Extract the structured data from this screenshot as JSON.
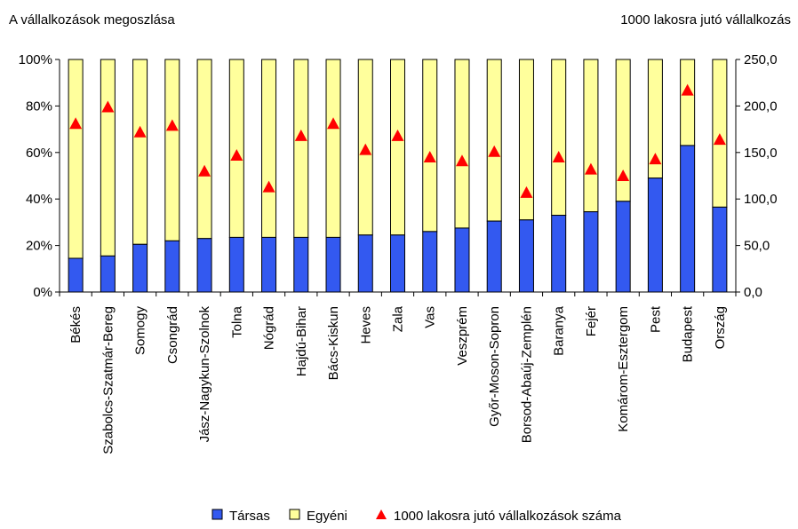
{
  "header": {
    "left_title": "A vállalkozások megoszlása",
    "right_title": "1000 lakosra jutó vállalkozás"
  },
  "chart_data": {
    "type": "bar",
    "stacked": true,
    "categories": [
      "Békés",
      "Szabolcs-Szatmár-Bereg",
      "Somogy",
      "Csongrád",
      "Jász-Nagykun-Szolnok",
      "Tolna",
      "Nógrád",
      "Hajdú-Bihar",
      "Bács-Kiskun",
      "Heves",
      "Zala",
      "Vas",
      "Veszprém",
      "Győr-Moson-Sopron",
      "Borsod-Abaúj-Zemplén",
      "Baranya",
      "Fejér",
      "Komárom-Esztergom",
      "Pest",
      "Budapest",
      "Ország"
    ],
    "series": [
      {
        "name": "Társas",
        "axis": "left",
        "color": "#3359F0",
        "values": [
          14.5,
          15.5,
          20.5,
          22,
          23,
          23.5,
          23.5,
          23.5,
          23.5,
          24.5,
          24.5,
          26,
          27.5,
          30.5,
          31,
          33,
          34.5,
          39,
          49,
          63,
          36.5
        ]
      },
      {
        "name": "Egyéni",
        "axis": "left",
        "color": "#FFFF9C",
        "values": [
          85.5,
          84.5,
          79.5,
          78,
          77,
          76.5,
          76.5,
          76.5,
          76.5,
          75.5,
          75.5,
          74,
          72.5,
          69.5,
          69,
          67,
          65.5,
          61,
          51,
          37,
          63.5
        ]
      },
      {
        "name": "1000 lakosra jutó vállalkozások száma",
        "axis": "right",
        "type": "scatter",
        "marker": "triangle",
        "color": "#FF0000",
        "values": [
          181,
          199,
          172,
          179,
          130,
          147,
          113,
          168,
          181,
          153,
          168,
          145,
          141,
          151,
          107,
          145,
          132,
          125,
          143,
          217,
          164
        ]
      }
    ],
    "left_axis": {
      "ticks": [
        "0%",
        "20%",
        "40%",
        "60%",
        "80%",
        "100%"
      ],
      "ylim": [
        0,
        100
      ]
    },
    "right_axis": {
      "ticks": [
        "0,0",
        "50,0",
        "100,0",
        "150,0",
        "200,0",
        "250,0"
      ],
      "ylim": [
        0,
        250
      ]
    },
    "legend_position": "bottom",
    "grid": false
  }
}
